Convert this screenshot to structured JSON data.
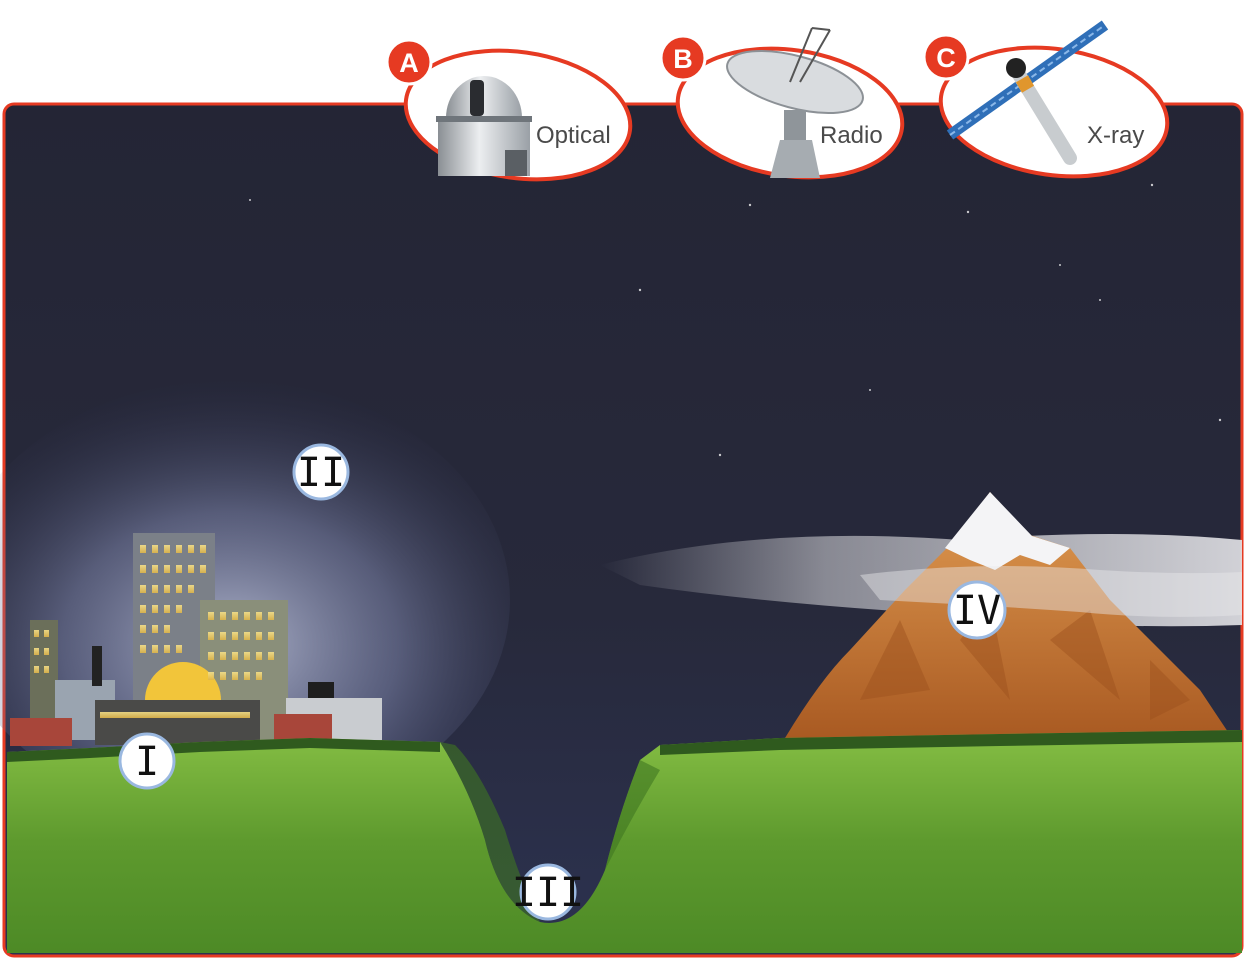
{
  "telescopes": [
    {
      "letter": "A",
      "label": "Optical",
      "icon": "observatory-dome-icon"
    },
    {
      "letter": "B",
      "label": "Radio",
      "icon": "radio-dish-icon"
    },
    {
      "letter": "C",
      "label": "X-ray",
      "icon": "xray-satellite-icon"
    }
  ],
  "locations": [
    {
      "label": "I",
      "place": "city"
    },
    {
      "label": "II",
      "place": "sky above city"
    },
    {
      "label": "III",
      "place": "valley bottom"
    },
    {
      "label": "IV",
      "place": "mountain"
    }
  ],
  "colors": {
    "tag_red": "#e63a22",
    "night_sky": "#272838",
    "grass": "#6aa334",
    "mountain": "#c8742f"
  }
}
